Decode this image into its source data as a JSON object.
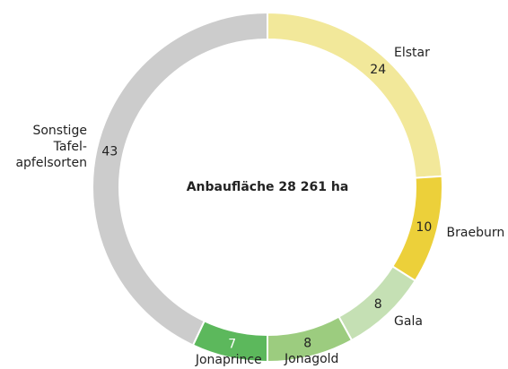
{
  "chart_data": {
    "type": "donut",
    "center_text": "Anbaufläche 28 261 ha",
    "categories": [
      "Elstar",
      "Braeburn",
      "Gala",
      "Jonagold",
      "Jonaprince",
      "Sonstige\nTafel-\napfelsorten"
    ],
    "values": [
      24,
      10,
      8,
      8,
      7,
      43
    ],
    "colors": [
      "#f2e89a",
      "#ecd03a",
      "#c5e0b4",
      "#9ccc7f",
      "#5cb85c",
      "#cccccc"
    ],
    "label_colors": [
      "#222222",
      "#222222",
      "#222222",
      "#222222",
      "#ffffff",
      "#222222"
    ]
  }
}
